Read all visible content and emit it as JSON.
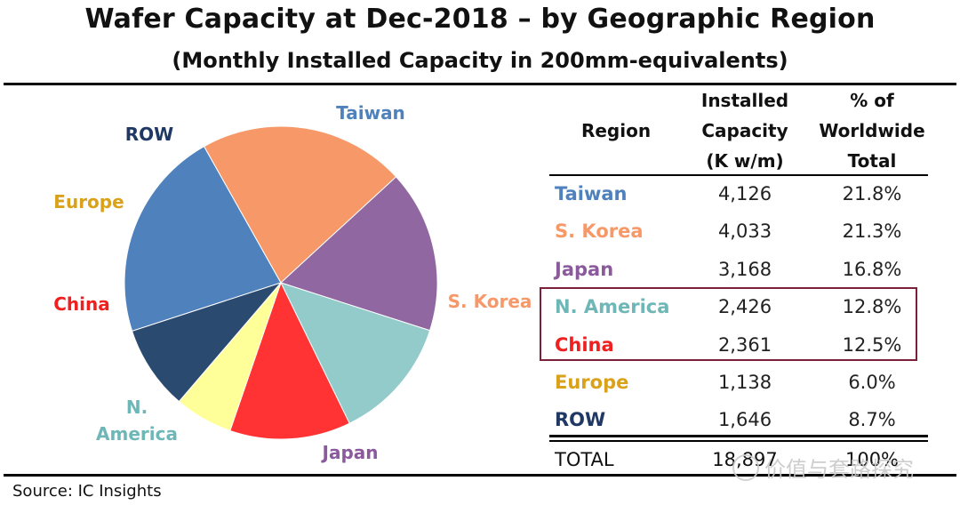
{
  "title": "Wafer Capacity at Dec-2018 – by Geographic Region",
  "subtitle": "(Monthly Installed Capacity in 200mm-equivalents)",
  "source": "Source:  IC Insights",
  "watermark": "价值与套路探究",
  "colors": {
    "taiwan": "#4f81bd",
    "skorea": "#f79868",
    "japan": "#9067a0",
    "namerica": "#93cbcb",
    "china": "#ff3333",
    "europe": "#ffff99",
    "row": "#2a4a70",
    "highlight_border": "#7b1f3a"
  },
  "table": {
    "headers": {
      "region": "Region",
      "capacity_l1": "Installed",
      "capacity_l2": "Capacity",
      "capacity_l3": "(K w/m)",
      "pct_l1": "% of",
      "pct_l2": "Worldwide",
      "pct_l3": "Total"
    },
    "rows": [
      {
        "region": "Taiwan",
        "capacity": "4,126",
        "pct": "21.8%",
        "color": "#4f81bd"
      },
      {
        "region": "S. Korea",
        "capacity": "4,033",
        "pct": "21.3%",
        "color": "#f79868"
      },
      {
        "region": "Japan",
        "capacity": "3,168",
        "pct": "16.8%",
        "color": "#8a5a9c"
      },
      {
        "region": "N. America",
        "capacity": "2,426",
        "pct": "12.8%",
        "color": "#6fb7b7"
      },
      {
        "region": "China",
        "capacity": "2,361",
        "pct": "12.5%",
        "color": "#ee2020"
      },
      {
        "region": "Europe",
        "capacity": "1,138",
        "pct": "6.0%",
        "color": "#d9a21a"
      },
      {
        "region": "ROW",
        "capacity": "1,646",
        "pct": "8.7%",
        "color": "#1f3864"
      }
    ],
    "total": {
      "label": "TOTAL",
      "capacity": "18,897",
      "pct": "100%"
    }
  },
  "chart_data": {
    "type": "pie",
    "title": "Wafer Capacity at Dec-2018 – by Geographic Region",
    "subtitle": "(Monthly Installed Capacity in 200mm-equivalents)",
    "categories": [
      "Taiwan",
      "S. Korea",
      "Japan",
      "N. America",
      "China",
      "Europe",
      "ROW"
    ],
    "values": [
      4126,
      4033,
      3168,
      2426,
      2361,
      1138,
      1646
    ],
    "percent": [
      21.8,
      21.3,
      16.8,
      12.8,
      12.5,
      6.0,
      8.7
    ],
    "colors": [
      "#4f81bd",
      "#f79868",
      "#9067a0",
      "#93cbcb",
      "#ff3333",
      "#ffff99",
      "#2a4a70"
    ],
    "label_colors": [
      "#4f81bd",
      "#f79868",
      "#8a5a9c",
      "#6fb7b7",
      "#ee2020",
      "#d9a21a",
      "#1f3864"
    ],
    "labels": [
      "Taiwan",
      "S. Korea",
      "Japan",
      "N.\nAmerica",
      "China",
      "Europe",
      "ROW"
    ],
    "legend": "none"
  }
}
